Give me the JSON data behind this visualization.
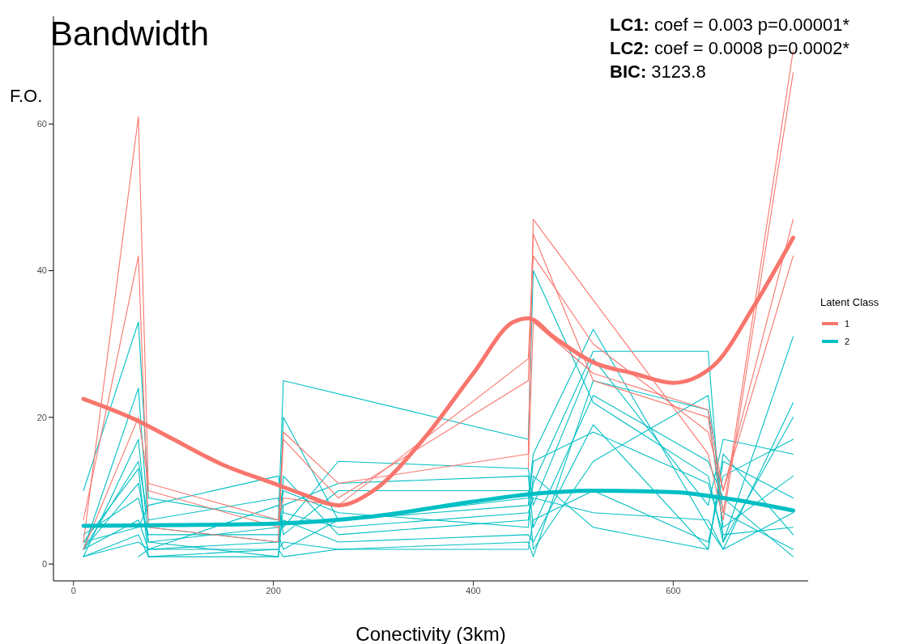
{
  "chart_data": {
    "type": "line",
    "title": "Bandwidth",
    "xlabel": "Conectivity (3km)",
    "ylabel": "F.O.",
    "legend_title": "Latent Class",
    "legend": "right",
    "grid": false,
    "marker": "none",
    "line_style": "solid",
    "annotations": [
      "LC1: coef = 0.003 p=0.00001*",
      "LC2: coef = 0.0008 p=0.0002*",
      "BIC: 3123.8"
    ],
    "xlim": [
      -20,
      735
    ],
    "xticks": [
      0,
      200,
      400,
      600
    ],
    "ylim": [
      -2.3,
      74.7
    ],
    "yticks": [
      0,
      20,
      40,
      60
    ],
    "series": [
      {
        "color": "#00bfc4",
        "x": [
          10,
          65,
          75,
          205,
          210,
          455,
          460,
          520,
          635,
          650,
          720
        ],
        "values": [
          10,
          33,
          9,
          6,
          25,
          17,
          40,
          22,
          12,
          3,
          31
        ]
      },
      {
        "color": "#00bfc4",
        "x": [
          10,
          65,
          75,
          205,
          210,
          265,
          455,
          460,
          520,
          635,
          650,
          720
        ],
        "values": [
          2,
          24,
          5,
          3,
          20,
          6,
          9,
          15,
          32,
          5,
          2,
          22
        ]
      },
      {
        "color": "#00bfc4",
        "x": [
          10,
          65,
          75,
          205,
          210,
          265,
          455,
          460,
          520,
          635,
          650,
          720
        ],
        "values": [
          1,
          17,
          3,
          1,
          12,
          4,
          6,
          11,
          29,
          29,
          3,
          20
        ]
      },
      {
        "color": "#00bfc4",
        "x": [
          10,
          65,
          75,
          205,
          210,
          265,
          455,
          460,
          520,
          635,
          650,
          720
        ],
        "values": [
          2,
          6,
          2,
          8,
          5,
          14,
          13,
          8,
          28,
          8,
          17,
          15
        ]
      },
      {
        "color": "#00bfc4",
        "x": [
          10,
          65,
          75,
          205,
          210,
          265,
          455,
          460,
          520,
          635,
          650,
          720
        ],
        "values": [
          3,
          13,
          1,
          2,
          3,
          2,
          3,
          1,
          25,
          21,
          5,
          12
        ]
      },
      {
        "color": "#00bfc4",
        "x": [
          10,
          65,
          75,
          205,
          210,
          265,
          455,
          460,
          520,
          635,
          650,
          720
        ],
        "values": [
          1,
          4,
          1,
          1,
          8,
          11,
          12,
          5,
          23,
          14,
          9,
          1
        ]
      },
      {
        "color": "#00bfc4",
        "x": [
          65,
          75,
          205,
          210,
          265,
          455,
          460,
          520,
          635,
          650,
          720
        ],
        "values": [
          1,
          2,
          3,
          6,
          3,
          4,
          3,
          19,
          2,
          14,
          9
        ]
      },
      {
        "color": "#00bfc4",
        "x": [
          10,
          65,
          75,
          205,
          210,
          265,
          455,
          460,
          520,
          635,
          650,
          720
        ],
        "values": [
          4,
          9,
          4,
          4,
          2,
          6,
          8,
          14,
          18,
          11,
          4,
          5
        ]
      },
      {
        "color": "#00bfc4",
        "x": [
          10,
          65,
          75,
          205,
          210,
          265,
          455,
          460,
          520,
          635,
          650,
          720
        ],
        "values": [
          2,
          14,
          6,
          9,
          4,
          10,
          10,
          2,
          14,
          23,
          7,
          2
        ]
      },
      {
        "color": "#00bfc4",
        "x": [
          10,
          65,
          75,
          205,
          210,
          265,
          455,
          460,
          520,
          635,
          650,
          720
        ],
        "values": [
          1,
          3,
          2,
          2,
          1,
          2,
          2,
          6,
          10,
          3,
          12,
          17
        ]
      },
      {
        "color": "#00bfc4",
        "x": [
          10,
          65,
          75,
          205,
          210,
          265,
          455,
          460,
          520,
          635,
          650,
          720
        ],
        "values": [
          3,
          5,
          8,
          12,
          7,
          5,
          7,
          9,
          7,
          6,
          2,
          7
        ]
      },
      {
        "color": "#00bfc4",
        "x": [
          10,
          65,
          75,
          205,
          210,
          265,
          455,
          460,
          520,
          635,
          650,
          720
        ],
        "values": [
          2,
          11,
          3,
          5,
          10,
          7,
          5,
          12,
          5,
          2,
          15,
          4
        ]
      },
      {
        "color": "#f8766d",
        "x": [
          10,
          65,
          75,
          205,
          210,
          265,
          455,
          460,
          520,
          635,
          650,
          720
        ],
        "values": [
          3,
          61,
          10,
          5,
          18,
          11,
          15,
          47,
          36,
          15,
          6,
          67
        ]
      },
      {
        "color": "#f8766d",
        "x": [
          10,
          65,
          75,
          205,
          210,
          265,
          455,
          460,
          520,
          635,
          650,
          720
        ],
        "values": [
          6,
          42,
          5,
          3,
          17,
          9,
          25,
          45,
          25,
          20,
          7,
          70
        ]
      },
      {
        "color": "#f8766d",
        "x": [
          10,
          65,
          75,
          205,
          210,
          265,
          455,
          460,
          520,
          635,
          650,
          720
        ],
        "values": [
          2,
          20,
          11,
          6,
          9,
          8,
          28,
          42,
          30,
          18,
          10,
          47
        ]
      },
      {
        "color": "#f8766d",
        "x": [
          455,
          460,
          520,
          635,
          650,
          720
        ],
        "values": [
          13,
          33,
          26,
          21,
          10,
          42
        ]
      },
      {
        "name": "1",
        "color": "#f8766d",
        "x": [
          10,
          65,
          100,
          150,
          200,
          230,
          265,
          300,
          350,
          400,
          440,
          455,
          480,
          520,
          560,
          600,
          640,
          680,
          720
        ],
        "values": [
          22.5,
          19.5,
          17,
          13.5,
          11,
          9.5,
          8,
          10,
          17,
          26,
          33,
          33.5,
          31,
          27.5,
          26,
          24.7,
          27,
          35,
          44.5
        ]
      },
      {
        "name": "2",
        "color": "#00bfc4",
        "x": [
          10,
          100,
          200,
          300,
          400,
          455,
          520,
          600,
          650,
          720
        ],
        "values": [
          5.2,
          5.3,
          5.5,
          6.5,
          8.5,
          9.5,
          10,
          9.8,
          9,
          7.3
        ]
      }
    ]
  }
}
